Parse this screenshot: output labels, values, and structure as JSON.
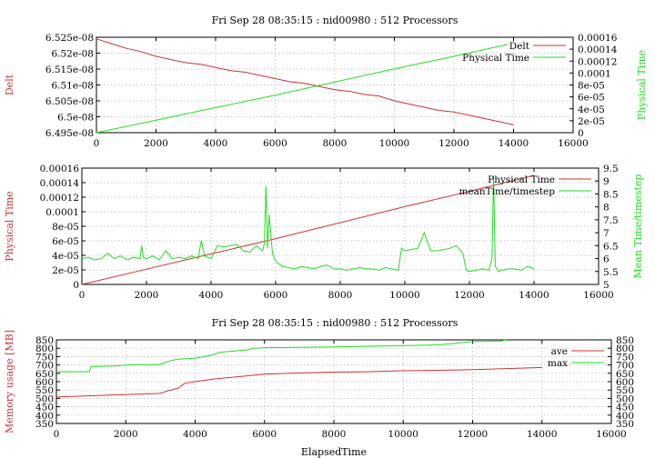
{
  "colors": {
    "red": "#cc3333",
    "green": "#22dd22"
  },
  "titles": {
    "top": "Fri Sep 28 08:35:15 : nid00980 : 512 Processors",
    "bottom": "Fri Sep 28 08:35:15 : nid00980 : 512 Processors"
  },
  "chart_data": [
    {
      "type": "line",
      "title": "Fri Sep 28 08:35:15 : nid00980 : 512 Processors",
      "xlim": [
        0,
        16000
      ],
      "xticks": [
        "0",
        "2000",
        "4000",
        "6000",
        "8000",
        "10000",
        "12000",
        "14000",
        "16000"
      ],
      "ylabel": "Delt",
      "ylim": [
        6.495e-08,
        6.525e-08
      ],
      "yticks": [
        "6.495e-08",
        "6.5e-08",
        "6.505e-08",
        "6.51e-08",
        "6.515e-08",
        "6.52e-08",
        "6.525e-08"
      ],
      "y2label": "Physical Time",
      "y2lim": [
        0,
        0.00016
      ],
      "y2ticks": [
        "0",
        "2e-05",
        "4e-05",
        "6e-05",
        "8e-05",
        "0.0001",
        "0.00012",
        "0.00014",
        "0.00016"
      ],
      "grid": true,
      "legend": "top-right",
      "series": [
        {
          "name": "Delt",
          "axis": "y",
          "color": "red",
          "x": [
            0,
            500,
            1000,
            1500,
            2000,
            2500,
            3000,
            3500,
            4000,
            4500,
            5000,
            5500,
            6000,
            6500,
            7000,
            7500,
            8000,
            8500,
            9000,
            9500,
            10000,
            10500,
            11000,
            11500,
            12000,
            12500,
            13000,
            13500,
            14000
          ],
          "y": [
            6.5245e-08,
            6.523e-08,
            6.5215e-08,
            6.5205e-08,
            6.519e-08,
            6.518e-08,
            6.517e-08,
            6.5165e-08,
            6.5155e-08,
            6.5145e-08,
            6.514e-08,
            6.513e-08,
            6.512e-08,
            6.511e-08,
            6.5105e-08,
            6.5095e-08,
            6.5085e-08,
            6.508e-08,
            6.507e-08,
            6.5065e-08,
            6.505e-08,
            6.504e-08,
            6.503e-08,
            6.502e-08,
            6.5015e-08,
            6.5005e-08,
            6.4995e-08,
            6.4985e-08,
            6.4975e-08
          ]
        },
        {
          "name": "Physical Time",
          "axis": "y2",
          "color": "green",
          "x": [
            0,
            2000,
            4000,
            6000,
            8000,
            10000,
            12000,
            13800
          ],
          "y": [
            0,
            2.1e-05,
            4.2e-05,
            6.3e-05,
            8.5e-05,
            0.000107,
            0.000128,
            0.000148
          ]
        }
      ]
    },
    {
      "type": "line",
      "title": "",
      "xlim": [
        0,
        16000
      ],
      "xticks": [
        "0",
        "2000",
        "4000",
        "6000",
        "8000",
        "10000",
        "12000",
        "14000",
        "16000"
      ],
      "ylabel": "Physical Time",
      "ylim": [
        0,
        0.00016
      ],
      "yticks": [
        "0",
        "2e-05",
        "4e-05",
        "6e-05",
        "8e-05",
        "0.0001",
        "0.00012",
        "0.00014",
        "0.00016"
      ],
      "y2label": "Mean Time/timestep",
      "y2lim": [
        5,
        9.5
      ],
      "y2ticks": [
        "5",
        "5.5",
        "6",
        "6.5",
        "7",
        "7.5",
        "8",
        "8.5",
        "9",
        "9.5"
      ],
      "grid": true,
      "legend": "top-right",
      "series": [
        {
          "name": "Physical Time",
          "axis": "y",
          "color": "red",
          "x": [
            0,
            2000,
            4000,
            6000,
            8000,
            10000,
            12000,
            14000
          ],
          "y": [
            0,
            2.1e-05,
            4.2e-05,
            6.3e-05,
            8.5e-05,
            0.000107,
            0.000128,
            0.00015
          ]
        },
        {
          "name": "meanTime/timestep",
          "axis": "y2",
          "color": "green",
          "x": [
            0,
            200,
            400,
            600,
            800,
            1000,
            1200,
            1400,
            1600,
            1800,
            1850,
            1900,
            2000,
            2200,
            2400,
            2600,
            2800,
            3000,
            3200,
            3400,
            3600,
            3700,
            3800,
            4000,
            4200,
            4400,
            4600,
            4800,
            5000,
            5200,
            5400,
            5600,
            5650,
            5700,
            5750,
            5800,
            5900,
            6000,
            6200,
            6400,
            6600,
            6800,
            7000,
            7200,
            7400,
            7600,
            7800,
            8000,
            8200,
            8400,
            8600,
            8800,
            9000,
            9200,
            9400,
            9600,
            9800,
            9900,
            10000,
            10200,
            10400,
            10600,
            10800,
            11000,
            11200,
            11400,
            11600,
            11800,
            11900,
            12000,
            12200,
            12400,
            12600,
            12700,
            12750,
            12800,
            12900,
            13000,
            13200,
            13400,
            13600,
            13800,
            14000
          ],
          "y": [
            6.0,
            6.05,
            5.95,
            6.0,
            6.2,
            6.0,
            6.1,
            5.95,
            6.05,
            6.0,
            6.5,
            6.05,
            6.0,
            6.1,
            5.95,
            6.3,
            6.0,
            6.05,
            6.0,
            6.1,
            6.0,
            6.7,
            6.1,
            6.0,
            6.5,
            6.45,
            6.5,
            6.55,
            6.3,
            6.25,
            6.5,
            6.3,
            6.6,
            8.8,
            6.4,
            7.7,
            6.2,
            5.9,
            5.7,
            5.65,
            5.6,
            5.7,
            5.65,
            5.6,
            5.7,
            5.75,
            5.6,
            5.6,
            5.55,
            5.6,
            5.65,
            5.6,
            5.6,
            5.55,
            5.65,
            5.6,
            5.55,
            6.4,
            6.3,
            6.35,
            6.4,
            7.0,
            6.3,
            6.3,
            6.35,
            6.4,
            6.5,
            6.2,
            5.55,
            5.5,
            5.55,
            5.6,
            5.55,
            6.0,
            9.2,
            5.7,
            5.5,
            5.55,
            5.6,
            5.6,
            5.55,
            5.7,
            5.6
          ]
        }
      ]
    },
    {
      "type": "line",
      "title": "Fri Sep 28 08:35:15 : nid00980 : 512 Processors",
      "xlabel": "ElapsedTime",
      "xlim": [
        0,
        16000
      ],
      "xticks": [
        "0",
        "2000",
        "4000",
        "6000",
        "8000",
        "10000",
        "12000",
        "14000",
        "16000"
      ],
      "ylabel": "Memory usage [MB]",
      "ylim": [
        350,
        850
      ],
      "yticks": [
        "350",
        "400",
        "450",
        "500",
        "550",
        "600",
        "650",
        "700",
        "750",
        "800",
        "850"
      ],
      "y2lim": [
        350,
        850
      ],
      "y2ticks": [
        "350",
        "400",
        "450",
        "500",
        "550",
        "600",
        "650",
        "700",
        "750",
        "800",
        "850"
      ],
      "grid": true,
      "legend": "top-right",
      "series": [
        {
          "name": "ave",
          "axis": "y",
          "color": "red",
          "x": [
            0,
            1000,
            2000,
            3000,
            3200,
            3500,
            3700,
            4000,
            4500,
            5000,
            5500,
            6000,
            7000,
            8000,
            9000,
            10000,
            11000,
            12000,
            13000,
            14000
          ],
          "y": [
            508,
            516,
            523,
            530,
            545,
            560,
            590,
            600,
            615,
            625,
            635,
            645,
            652,
            657,
            660,
            665,
            668,
            672,
            678,
            685
          ]
        },
        {
          "name": "max",
          "axis": "y",
          "color": "green",
          "x": [
            0,
            950,
            1000,
            1800,
            2000,
            3000,
            3200,
            3500,
            4000,
            4500,
            4700,
            5500,
            5700,
            6000,
            7000,
            8000,
            9000,
            10000,
            11000,
            11500,
            12000,
            12800,
            12900,
            13000
          ],
          "y": [
            660,
            660,
            690,
            695,
            700,
            703,
            720,
            735,
            740,
            760,
            775,
            790,
            800,
            803,
            805,
            808,
            812,
            815,
            820,
            830,
            840,
            842,
            848,
            848
          ]
        }
      ]
    }
  ]
}
